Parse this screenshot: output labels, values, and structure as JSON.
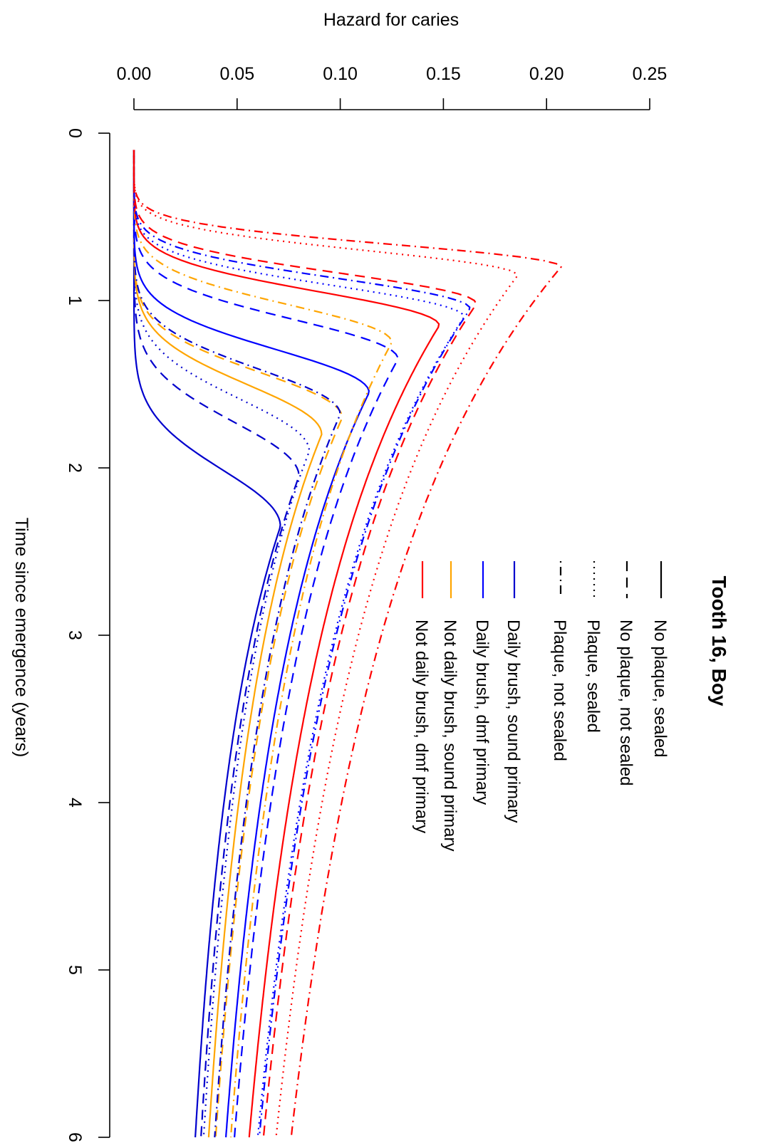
{
  "chart_data": {
    "type": "line",
    "title": "Tooth 16, Boy",
    "xlabel": "Time since emergence (years)",
    "ylabel": "Hazard for caries",
    "xlim": [
      0,
      6
    ],
    "ylim": [
      0,
      0.25
    ],
    "x_ticks": [
      "0",
      "1",
      "2",
      "3",
      "4",
      "5",
      "6"
    ],
    "y_ticks": [
      "0.00",
      "0.05",
      "0.10",
      "0.15",
      "0.20",
      "0.25"
    ],
    "orientation": "rotated 90 degrees clockwise",
    "legend_position": "top-right",
    "legend": [
      {
        "label": "No plaque, sealed",
        "color": "#000000",
        "dash": "solid"
      },
      {
        "label": "No plaque, not sealed",
        "color": "#000000",
        "dash": "dashed"
      },
      {
        "label": "Plaque, sealed",
        "color": "#000000",
        "dash": "dotted"
      },
      {
        "label": "Plaque, not sealed",
        "color": "#000000",
        "dash": "dotdash"
      },
      {
        "label": "Daily brush, sound primary",
        "color": "#0000CD",
        "dash": "solid"
      },
      {
        "label": "Daily brush, dmf primary",
        "color": "#0000FF",
        "dash": "solid"
      },
      {
        "label": "Not daily brush, sound primary",
        "color": "#FFA500",
        "dash": "solid"
      },
      {
        "label": "Not daily brush, dmf primary",
        "color": "#FF0000",
        "dash": "solid"
      }
    ],
    "series": [
      {
        "color": "#0000CD",
        "dash": "solid",
        "peak_x": 2.35,
        "peak_y": 0.071,
        "onset": 0.75,
        "width": 0.5,
        "decay": 0.38
      },
      {
        "color": "#0000CD",
        "dash": "dashed",
        "peak_x": 2.05,
        "peak_y": 0.08,
        "onset": 0.7,
        "width": 0.48,
        "decay": 0.37
      },
      {
        "color": "#0000CD",
        "dash": "dotted",
        "peak_x": 1.9,
        "peak_y": 0.085,
        "onset": 0.68,
        "width": 0.46,
        "decay": 0.37
      },
      {
        "color": "#FFA500",
        "dash": "solid",
        "peak_x": 1.8,
        "peak_y": 0.091,
        "onset": 0.65,
        "width": 0.44,
        "decay": 0.36
      },
      {
        "color": "#FFA500",
        "dash": "dashed",
        "peak_x": 1.7,
        "peak_y": 0.101,
        "onset": 0.6,
        "width": 0.4,
        "decay": 0.36
      },
      {
        "color": "#0000CD",
        "dash": "dotdash",
        "peak_x": 1.68,
        "peak_y": 0.1,
        "onset": 0.6,
        "width": 0.4,
        "decay": 0.36
      },
      {
        "color": "#0000FF",
        "dash": "solid",
        "peak_x": 1.55,
        "peak_y": 0.114,
        "onset": 0.5,
        "width": 0.38,
        "decay": 0.35
      },
      {
        "color": "#0000FF",
        "dash": "dashed",
        "peak_x": 1.35,
        "peak_y": 0.128,
        "onset": 0.45,
        "width": 0.35,
        "decay": 0.35
      },
      {
        "color": "#FFA500",
        "dash": "dotdash",
        "peak_x": 1.25,
        "peak_y": 0.125,
        "onset": 0.45,
        "width": 0.33,
        "decay": 0.35
      },
      {
        "color": "#FF0000",
        "dash": "solid",
        "peak_x": 1.15,
        "peak_y": 0.148,
        "onset": 0.38,
        "width": 0.3,
        "decay": 0.34
      },
      {
        "color": "#0000FF",
        "dash": "dotted",
        "peak_x": 1.1,
        "peak_y": 0.16,
        "onset": 0.35,
        "width": 0.28,
        "decay": 0.34
      },
      {
        "color": "#0000FF",
        "dash": "dotdash",
        "peak_x": 1.05,
        "peak_y": 0.163,
        "onset": 0.35,
        "width": 0.27,
        "decay": 0.34
      },
      {
        "color": "#FF0000",
        "dash": "dashed",
        "peak_x": 1.02,
        "peak_y": 0.166,
        "onset": 0.33,
        "width": 0.27,
        "decay": 0.33
      },
      {
        "color": "#FF0000",
        "dash": "dotted",
        "peak_x": 0.85,
        "peak_y": 0.186,
        "onset": 0.3,
        "width": 0.22,
        "decay": 0.33
      },
      {
        "color": "#FF0000",
        "dash": "dotdash",
        "peak_x": 0.8,
        "peak_y": 0.207,
        "onset": 0.28,
        "width": 0.2,
        "decay": 0.33
      }
    ]
  }
}
